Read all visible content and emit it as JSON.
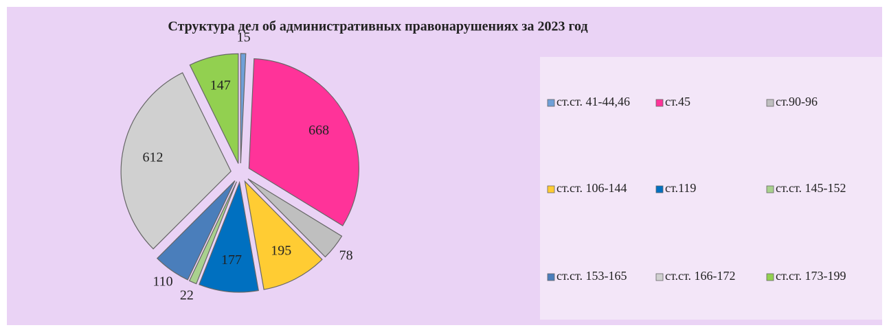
{
  "chart_data": {
    "type": "pie",
    "title": "Структура дел об административных правонарушениях за 2023 год",
    "categories": [
      "ст.ст. 41-44,46",
      "ст.45",
      "ст.90-96",
      "ст.ст. 106-144",
      "ст.119",
      "ст.ст. 145-152",
      "ст.ст. 153-165",
      "ст.ст. 166-172",
      "ст.ст. 173-199"
    ],
    "values": [
      15,
      668,
      78,
      195,
      177,
      22,
      110,
      612,
      147
    ],
    "colors": [
      "#6fa0d8",
      "#ff3399",
      "#bfbfbf",
      "#ffcc33",
      "#0070c0",
      "#a9d18e",
      "#4a7ebb",
      "#d0d0d0",
      "#92d050"
    ],
    "legend": "right"
  }
}
